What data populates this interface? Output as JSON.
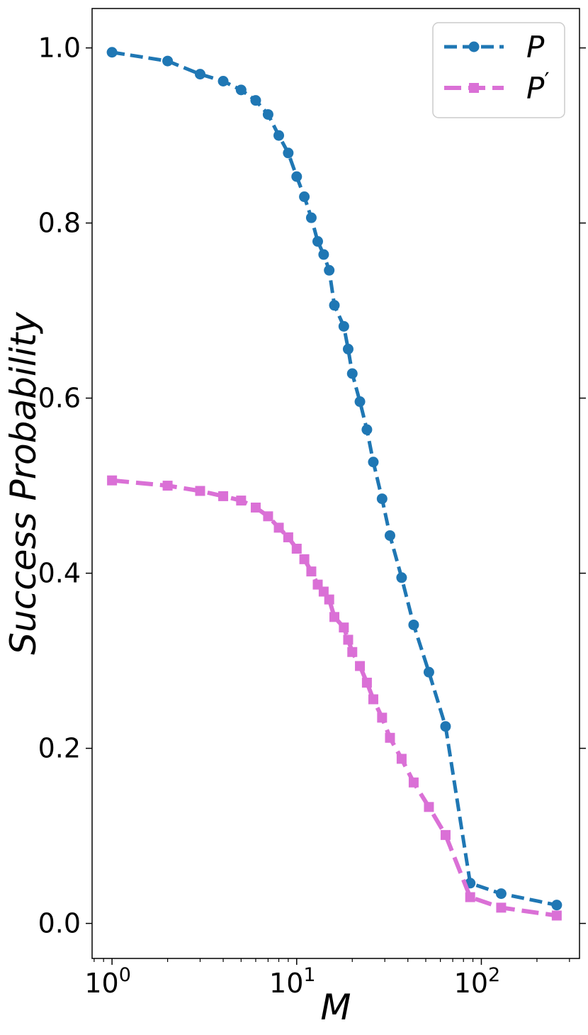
{
  "chart_data": {
    "type": "line",
    "xlabel": "M",
    "ylabel": "Success Probability",
    "xscale": "log",
    "xlim": [
      0.78,
      340
    ],
    "ylim": [
      -0.04,
      1.045
    ],
    "grid": false,
    "legend_position": "top-right",
    "x_ticks": [
      {
        "value": 1,
        "base": "10",
        "exp": "0"
      },
      {
        "value": 10,
        "base": "10",
        "exp": "1"
      },
      {
        "value": 100,
        "base": "10",
        "exp": "2"
      }
    ],
    "y_ticks": [
      {
        "value": 0.0,
        "label": "0.0"
      },
      {
        "value": 0.2,
        "label": "0.2"
      },
      {
        "value": 0.4,
        "label": "0.4"
      },
      {
        "value": 0.6,
        "label": "0.6"
      },
      {
        "value": 0.8,
        "label": "0.8"
      },
      {
        "value": 1.0,
        "label": "1.0"
      }
    ],
    "x": [
      1,
      2,
      3,
      4,
      5,
      6,
      7,
      8,
      9,
      10,
      11,
      12,
      13,
      14,
      15,
      16,
      18,
      19,
      20,
      22,
      24,
      26,
      29,
      32,
      37,
      43,
      52,
      64,
      87,
      128,
      256
    ],
    "series": [
      {
        "name": "P",
        "legend_base": "P",
        "legend_prime": "",
        "color": "#1f77b4",
        "marker": "circle",
        "values": [
          0.995,
          0.985,
          0.97,
          0.962,
          0.952,
          0.94,
          0.924,
          0.9,
          0.88,
          0.853,
          0.83,
          0.806,
          0.779,
          0.764,
          0.746,
          0.706,
          0.682,
          0.656,
          0.628,
          0.596,
          0.564,
          0.527,
          0.485,
          0.443,
          0.395,
          0.341,
          0.287,
          0.225,
          0.046,
          0.034,
          0.021
        ]
      },
      {
        "name": "P′",
        "legend_base": "P",
        "legend_prime": "′",
        "color": "#da70d6",
        "marker": "square",
        "values": [
          0.506,
          0.5,
          0.494,
          0.488,
          0.483,
          0.475,
          0.465,
          0.452,
          0.441,
          0.428,
          0.416,
          0.402,
          0.387,
          0.379,
          0.37,
          0.35,
          0.338,
          0.324,
          0.31,
          0.294,
          0.275,
          0.256,
          0.235,
          0.212,
          0.188,
          0.161,
          0.133,
          0.101,
          0.03,
          0.018,
          0.009
        ]
      }
    ]
  }
}
